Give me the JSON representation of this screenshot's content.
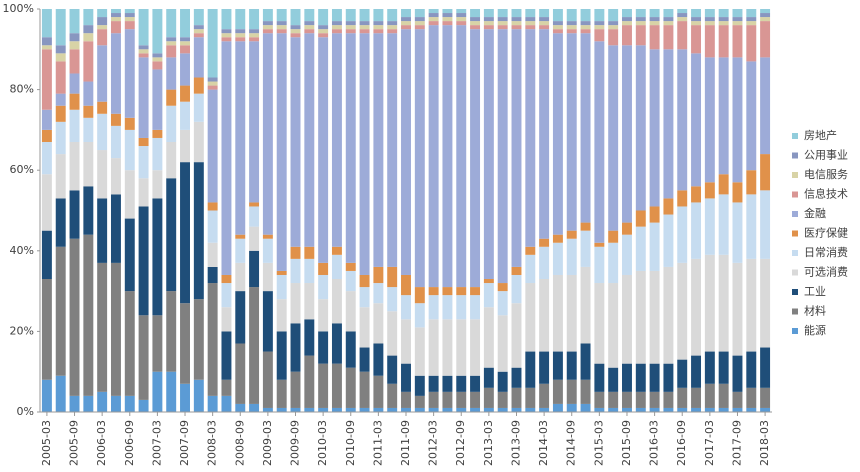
{
  "chart_data": {
    "type": "bar",
    "stacked": true,
    "categories": [
      "2005-03",
      null,
      "2005-09",
      null,
      "2006-03",
      null,
      "2006-09",
      null,
      "2007-03",
      null,
      "2007-09",
      null,
      "2008-03",
      null,
      "2008-09",
      null,
      "2009-03",
      null,
      "2009-09",
      null,
      "2010-03",
      null,
      "2010-09",
      null,
      "2011-03",
      null,
      "2011-09",
      null,
      "2012-03",
      null,
      "2012-09",
      null,
      "2013-03",
      null,
      "2013-09",
      null,
      "2014-03",
      null,
      "2014-09",
      null,
      "2015-03",
      null,
      "2015-09",
      null,
      "2016-03",
      null,
      "2016-09",
      null,
      "2017-03",
      null,
      "2017-09",
      null,
      "2018-03"
    ],
    "ylim": [
      0,
      100
    ],
    "yticks": [
      {
        "value": 0,
        "label": "0%"
      },
      {
        "value": 20,
        "label": "20%"
      },
      {
        "value": 40,
        "label": "40%"
      },
      {
        "value": 60,
        "label": "60%"
      },
      {
        "value": 80,
        "label": "80%"
      },
      {
        "value": 100,
        "label": "100%"
      }
    ],
    "legend": "right",
    "series": [
      {
        "name": "能源",
        "color": "#5b9bd5",
        "values": [
          8,
          9,
          4,
          4,
          5,
          4,
          4,
          3,
          10,
          10,
          7,
          8,
          4,
          4,
          2,
          2,
          1,
          1,
          1,
          1,
          1,
          1,
          1,
          1,
          1,
          1,
          1,
          1,
          1,
          1,
          1,
          1,
          1,
          1,
          1,
          1,
          1,
          2,
          2,
          2,
          1,
          1,
          1,
          1,
          1,
          1,
          1,
          1,
          1,
          1,
          1,
          1,
          1
        ]
      },
      {
        "name": "材料",
        "color": "#808080",
        "values": [
          25,
          32,
          39,
          40,
          32,
          33,
          26,
          21,
          14,
          20,
          20,
          20,
          28,
          4,
          15,
          29,
          14,
          7,
          9,
          13,
          11,
          11,
          10,
          9,
          8,
          6,
          4,
          3,
          4,
          4,
          4,
          4,
          5,
          4,
          5,
          5,
          6,
          6,
          6,
          6,
          4,
          4,
          4,
          4,
          4,
          4,
          5,
          5,
          6,
          6,
          4,
          5,
          5
        ]
      },
      {
        "name": "工业",
        "color": "#1f4e79",
        "values": [
          12,
          12,
          12,
          12,
          16,
          17,
          18,
          27,
          29,
          28,
          35,
          34,
          4,
          12,
          13,
          9,
          15,
          12,
          12,
          9,
          8,
          10,
          9,
          6,
          8,
          7,
          7,
          5,
          4,
          4,
          4,
          4,
          5,
          5,
          5,
          9,
          8,
          7,
          7,
          9,
          7,
          6,
          7,
          7,
          7,
          7,
          7,
          8,
          8,
          8,
          9,
          9,
          10
        ]
      },
      {
        "name": "可选消费",
        "color": "#d9d9d9",
        "values": [
          14,
          11,
          12,
          11,
          12,
          9,
          12,
          7,
          7,
          9,
          8,
          10,
          6,
          6,
          7,
          6,
          7,
          8,
          10,
          9,
          8,
          11,
          10,
          10,
          10,
          11,
          11,
          12,
          14,
          14,
          14,
          14,
          15,
          14,
          16,
          17,
          18,
          19,
          19,
          19,
          20,
          21,
          22,
          23,
          23,
          24,
          24,
          24,
          24,
          24,
          23,
          23,
          22
        ]
      },
      {
        "name": "日常消费",
        "color": "#c6dcf0",
        "values": [
          8,
          8,
          8,
          6,
          9,
          8,
          10,
          8,
          8,
          9,
          7,
          7,
          8,
          6,
          6,
          5,
          6,
          6,
          6,
          6,
          6,
          6,
          5,
          5,
          5,
          6,
          6,
          6,
          6,
          6,
          6,
          6,
          6,
          6,
          7,
          7,
          8,
          8,
          9,
          9,
          9,
          10,
          10,
          11,
          12,
          13,
          14,
          14,
          14,
          15,
          15,
          16,
          17
        ]
      },
      {
        "name": "医疗保健",
        "color": "#e0914a",
        "values": [
          3,
          4,
          4,
          3,
          3,
          3,
          3,
          2,
          2,
          4,
          4,
          4,
          2,
          2,
          1,
          1,
          1,
          1,
          3,
          3,
          3,
          2,
          2,
          3,
          4,
          5,
          5,
          4,
          2,
          2,
          2,
          2,
          1,
          2,
          2,
          2,
          2,
          2,
          2,
          2,
          1,
          3,
          3,
          4,
          4,
          4,
          4,
          4,
          4,
          5,
          5,
          6,
          9
        ]
      },
      {
        "name": "金融",
        "color": "#9dabd8",
        "values": [
          5,
          3,
          5,
          6,
          14,
          20,
          22,
          20,
          15,
          8,
          8,
          10,
          28,
          58,
          48,
          40,
          50,
          59,
          52,
          53,
          56,
          53,
          57,
          60,
          58,
          58,
          61,
          64,
          65,
          65,
          65,
          64,
          62,
          63,
          59,
          54,
          52,
          50,
          49,
          47,
          50,
          46,
          44,
          41,
          39,
          37,
          35,
          33,
          31,
          29,
          31,
          27,
          24
        ]
      },
      {
        "name": "信息技术",
        "color": "#d99694",
        "values": [
          15,
          8,
          6,
          10,
          4,
          3,
          2,
          1,
          2,
          3,
          2,
          1,
          1,
          1,
          1,
          1,
          1,
          1,
          1,
          1,
          1,
          1,
          1,
          1,
          1,
          1,
          1,
          1,
          1,
          1,
          1,
          1,
          1,
          1,
          1,
          1,
          1,
          1,
          1,
          1,
          3,
          4,
          5,
          5,
          6,
          6,
          7,
          7,
          8,
          8,
          8,
          9,
          9
        ]
      },
      {
        "name": "电信服务",
        "color": "#d8d3a6",
        "values": [
          1,
          2,
          2,
          2,
          1,
          1,
          1,
          1,
          1,
          1,
          1,
          1,
          1,
          1,
          1,
          1,
          1,
          1,
          1,
          1,
          1,
          1,
          1,
          1,
          1,
          1,
          1,
          1,
          1,
          1,
          1,
          1,
          1,
          1,
          1,
          1,
          1,
          1,
          1,
          1,
          1,
          1,
          1,
          1,
          1,
          1,
          1,
          1,
          1,
          1,
          1,
          1,
          1
        ]
      },
      {
        "name": "公用事业",
        "color": "#8896c0",
        "values": [
          2,
          2,
          2,
          2,
          2,
          1,
          1,
          1,
          1,
          1,
          1,
          1,
          1,
          1,
          1,
          1,
          1,
          1,
          1,
          1,
          1,
          1,
          1,
          1,
          1,
          1,
          1,
          1,
          1,
          1,
          1,
          1,
          1,
          1,
          1,
          1,
          1,
          1,
          1,
          1,
          1,
          1,
          1,
          1,
          1,
          1,
          1,
          1,
          1,
          1,
          1,
          1,
          1
        ]
      },
      {
        "name": "房地产",
        "color": "#92cddc",
        "values": [
          7,
          9,
          6,
          4,
          2,
          1,
          1,
          9,
          11,
          7,
          7,
          4,
          17,
          5,
          5,
          5,
          3,
          3,
          4,
          3,
          4,
          3,
          3,
          3,
          3,
          3,
          2,
          2,
          1,
          1,
          1,
          2,
          2,
          2,
          2,
          2,
          2,
          3,
          3,
          3,
          3,
          3,
          2,
          2,
          2,
          2,
          1,
          2,
          2,
          2,
          2,
          2,
          1
        ]
      }
    ]
  }
}
